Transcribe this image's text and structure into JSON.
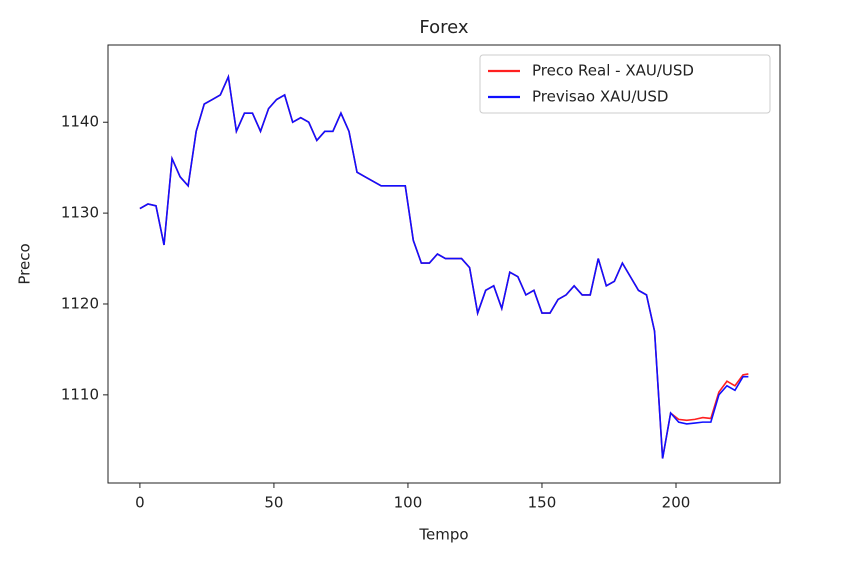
{
  "chart_data": {
    "type": "line",
    "title": "Forex",
    "xlabel": "Tempo",
    "ylabel": "Preco",
    "x": [
      0,
      3,
      6,
      9,
      12,
      15,
      18,
      21,
      24,
      27,
      30,
      33,
      36,
      39,
      42,
      45,
      48,
      51,
      54,
      57,
      60,
      63,
      66,
      69,
      72,
      75,
      78,
      81,
      84,
      87,
      90,
      93,
      96,
      99,
      102,
      105,
      108,
      111,
      114,
      117,
      120,
      123,
      126,
      129,
      132,
      135,
      138,
      141,
      144,
      147,
      150,
      153,
      156,
      159,
      162,
      165,
      168,
      171,
      174,
      177,
      180,
      183,
      186,
      189,
      192,
      195,
      198,
      201,
      204,
      207,
      210,
      213,
      216,
      219,
      222,
      225,
      227
    ],
    "series": [
      {
        "name": "Preco Real - XAU/USD",
        "color": "#ff2020",
        "values": [
          1130.5,
          1131,
          1130.8,
          1126.5,
          1136,
          1134,
          1133,
          1139,
          1142,
          1142.5,
          1143,
          1145,
          1139,
          1141,
          1141,
          1139,
          1141.5,
          1142.5,
          1143,
          1140,
          1140.5,
          1140,
          1138,
          1139,
          1139,
          1141,
          1139,
          1134.5,
          1134,
          1133.5,
          1133,
          1133,
          1133,
          1133,
          1127,
          1124.5,
          1124.5,
          1125.5,
          1125,
          1125,
          1125,
          1124,
          1119,
          1121.5,
          1122,
          1119.5,
          1123.5,
          1123,
          1121,
          1121.5,
          1119,
          1119,
          1120.5,
          1121,
          1122,
          1121,
          1121,
          1125,
          1122,
          1122.5,
          1124.5,
          1123,
          1121.5,
          1121,
          1117,
          1103,
          1108,
          1107.3,
          1107.2,
          1107.3,
          1107.5,
          1107.4,
          1110.3,
          1111.5,
          1111,
          1112.2,
          1112.3
        ]
      },
      {
        "name": "Previsao XAU/USD",
        "color": "#1010ff",
        "values": [
          1130.5,
          1131,
          1130.8,
          1126.5,
          1136,
          1134,
          1133,
          1139,
          1142,
          1142.5,
          1143,
          1145,
          1139,
          1141,
          1141,
          1139,
          1141.5,
          1142.5,
          1143,
          1140,
          1140.5,
          1140,
          1138,
          1139,
          1139,
          1141,
          1139,
          1134.5,
          1134,
          1133.5,
          1133,
          1133,
          1133,
          1133,
          1127,
          1124.5,
          1124.5,
          1125.5,
          1125,
          1125,
          1125,
          1124,
          1119,
          1121.5,
          1122,
          1119.5,
          1123.5,
          1123,
          1121,
          1121.5,
          1119,
          1119,
          1120.5,
          1121,
          1122,
          1121,
          1121,
          1125,
          1122,
          1122.5,
          1124.5,
          1123,
          1121.5,
          1121,
          1117,
          1103,
          1108,
          1107,
          1106.8,
          1106.9,
          1107,
          1107,
          1110,
          1111,
          1110.5,
          1112,
          1112
        ]
      }
    ],
    "xlim": [
      -11.9,
      238.8
    ],
    "xticks": [
      0,
      50,
      100,
      150,
      200
    ],
    "ylim": [
      1100.3,
      1148.5
    ],
    "yticks": [
      1110,
      1120,
      1130,
      1140
    ],
    "grid": false,
    "legend": "upper right"
  }
}
